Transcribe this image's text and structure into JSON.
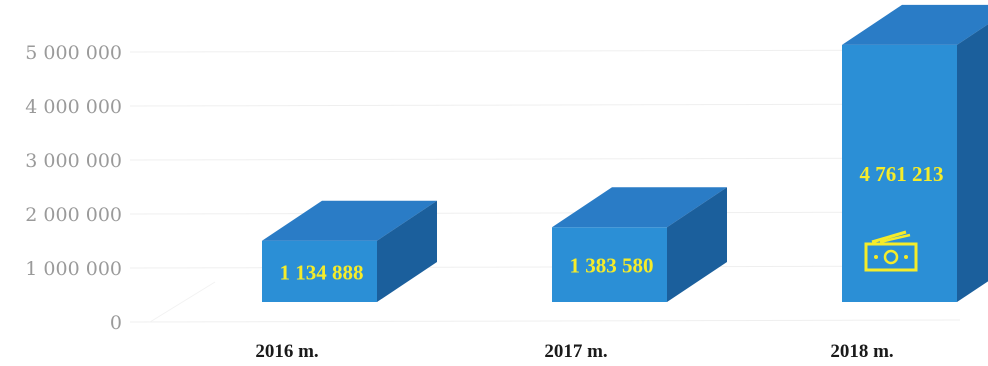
{
  "chart_data": {
    "type": "bar",
    "categories": [
      "2016 m.",
      "2017 m.",
      "2018 m."
    ],
    "values": [
      1134888,
      1383580,
      4761213
    ],
    "value_labels": [
      "1 134 888",
      "1 383 580",
      "4 761 213"
    ],
    "ylim": [
      0,
      5000000
    ],
    "yticks": [
      0,
      1000000,
      2000000,
      3000000,
      4000000,
      5000000
    ],
    "ytick_labels": [
      "0",
      "1 000 000",
      "2 000 000",
      "3 000 000",
      "4 000 000",
      "5 000 000"
    ],
    "grid": true,
    "style": "3d-box",
    "colors": {
      "bar_front": "#2b8fd6",
      "bar_top": "#2a7cc6",
      "bar_side": "#1b5f9c",
      "label": "#f5ec2a",
      "tick": "#9a9a9a",
      "grid": "#efefef"
    },
    "icons": [
      "money-icon"
    ]
  }
}
